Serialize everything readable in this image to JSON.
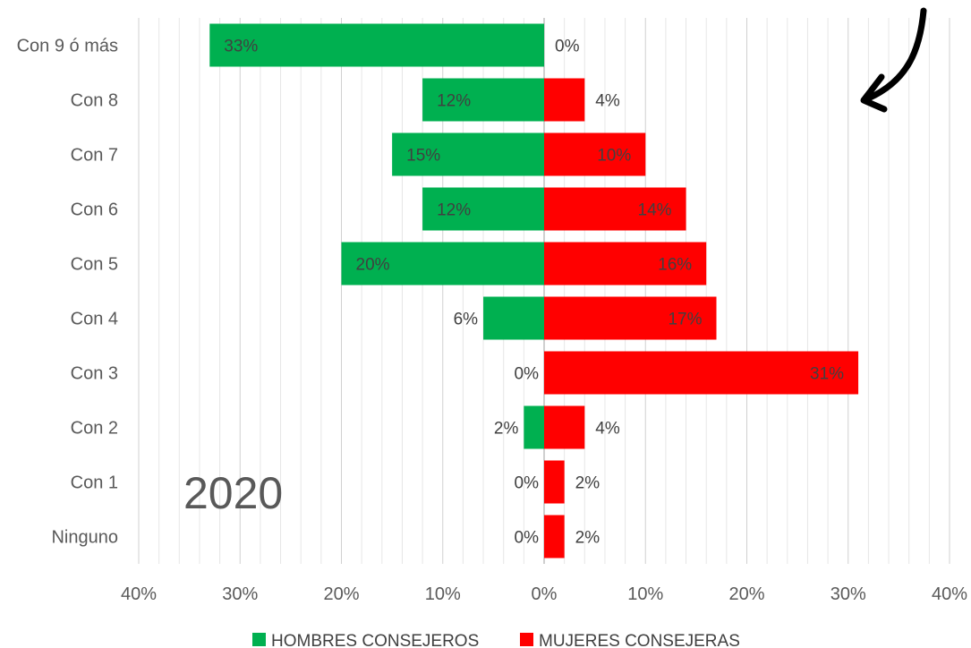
{
  "chart_data": {
    "type": "bar",
    "orientation": "horizontal-butterfly",
    "title": "",
    "annotation": "2020",
    "categories": [
      "Con 9 ó más",
      "Con 8",
      "Con 7",
      "Con 6",
      "Con 5",
      "Con 4",
      "Con 3",
      "Con 2",
      "Con 1",
      "Ninguno"
    ],
    "series": [
      {
        "name": "HOMBRES CONSEJEROS",
        "color": "#00b050",
        "side": "left",
        "values": [
          33,
          12,
          15,
          12,
          20,
          6,
          0,
          2,
          0,
          0
        ],
        "labels": [
          "33%",
          "12%",
          "15%",
          "12%",
          "20%",
          "6%",
          "0%",
          "2%",
          "0%",
          "0%"
        ]
      },
      {
        "name": "MUJERES CONSEJERAS",
        "color": "#ff0000",
        "side": "right",
        "values": [
          0,
          4,
          10,
          14,
          16,
          17,
          31,
          4,
          2,
          2
        ],
        "labels": [
          "0%",
          "4%",
          "10%",
          "14%",
          "16%",
          "17%",
          "31%",
          "4%",
          "2%",
          "2%"
        ]
      }
    ],
    "x_ticks": [
      -40,
      -30,
      -20,
      -10,
      0,
      10,
      20,
      30,
      40
    ],
    "x_tick_labels": [
      "40%",
      "30%",
      "20%",
      "10%",
      "0%",
      "10%",
      "20%",
      "30%",
      "40%"
    ],
    "xlim": [
      -40,
      40
    ],
    "grid": true,
    "legend": "bottom-center"
  }
}
